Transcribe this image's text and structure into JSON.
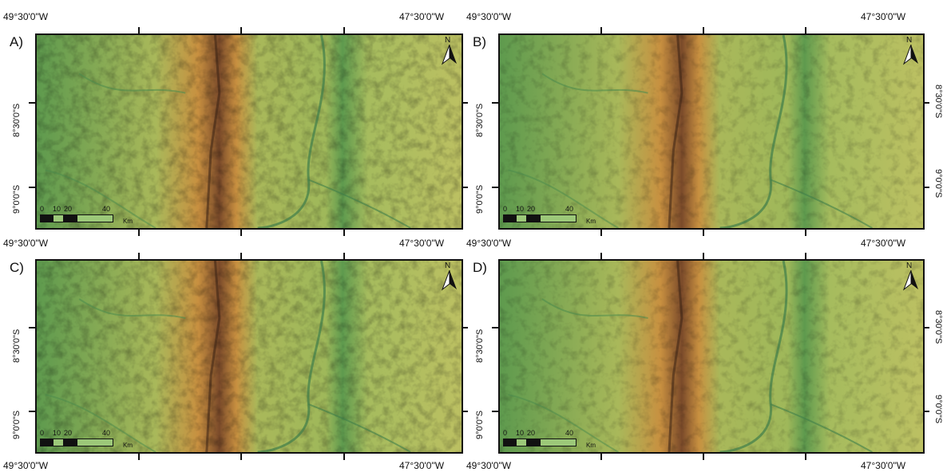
{
  "colors": {
    "low": "#5e9a4e",
    "mid": "#a9b85a",
    "high": "#c89040",
    "ridge": "#7a4a2a",
    "frame": "#111111"
  },
  "panels": [
    {
      "label": "A)",
      "lon_left": "49°30'0\"W",
      "lon_right": "47°30'0\"W",
      "lat_top": "8°30'0\"S",
      "lat_bottom": "9°0'0\"S",
      "scale_ticks": [
        "0",
        "10",
        "20",
        "40"
      ],
      "scale_unit": "Km",
      "north_label": "N"
    },
    {
      "label": "B)",
      "lon_left": "49°30'0\"W",
      "lon_right": "47°30'0\"W",
      "lat_top": "8°30'0\"S",
      "lat_bottom": "9°0'0\"S",
      "scale_ticks": [
        "0",
        "10",
        "20",
        "40"
      ],
      "scale_unit": "Km",
      "north_label": "N"
    },
    {
      "label": "C)",
      "lon_left": "49°30'0\"W",
      "lon_right": "47°30'0\"W",
      "lat_top": "8°30'0\"S",
      "lat_bottom": "9°0'0\"S",
      "scale_ticks": [
        "0",
        "10",
        "20",
        "40"
      ],
      "scale_unit": "Km",
      "north_label": "N"
    },
    {
      "label": "D)",
      "lon_left": "49°30'0\"W",
      "lon_right": "47°30'0\"W",
      "lat_top": "8°30'0\"S",
      "lat_bottom": "9°0'0\"S",
      "scale_ticks": [
        "0",
        "10",
        "20",
        "40"
      ],
      "scale_unit": "Km",
      "north_label": "N"
    }
  ],
  "bottom_labels": {
    "left_panel_lon_left": "49°30'0\"W",
    "left_panel_lon_right": "47°30'0\"W",
    "right_panel_lon_left": "49°30'0\"W",
    "right_panel_lon_right": "47°30'0\"W"
  }
}
